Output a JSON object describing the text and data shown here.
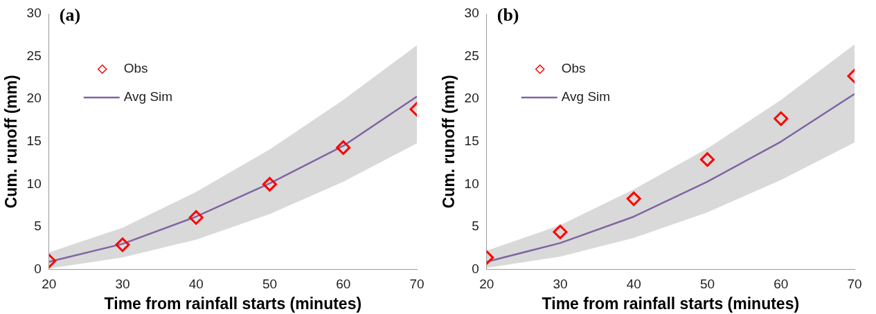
{
  "chart_data": [
    {
      "type": "line",
      "title": "(a)",
      "xlabel": "Time from rainfall starts (minutes)",
      "ylabel": "Cum. runoff (mm)",
      "xlim": [
        20,
        70
      ],
      "xticks": [
        20,
        30,
        40,
        50,
        60,
        70
      ],
      "ylim": [
        0,
        30
      ],
      "yticks": [
        0,
        5,
        10,
        15,
        20,
        25,
        30
      ],
      "grid": false,
      "legend": "top left",
      "series": [
        {
          "name": "Obs",
          "type": "scatter",
          "marker": "diamond",
          "color": "#ff0000",
          "x": [
            20,
            30,
            40,
            50,
            60,
            70
          ],
          "values": [
            1.0,
            2.9,
            6.1,
            10.0,
            14.3,
            18.8
          ]
        },
        {
          "name": "Avg Sim",
          "type": "line",
          "marker": "none",
          "line_style": "solid",
          "color": "#8064a2",
          "x": [
            20,
            30,
            40,
            50,
            60,
            70
          ],
          "values": [
            0.9,
            3.0,
            6.2,
            10.1,
            14.5,
            20.3
          ],
          "lower": [
            0.1,
            1.4,
            3.5,
            6.5,
            10.3,
            14.8
          ],
          "upper": [
            2.0,
            4.9,
            9.1,
            14.1,
            19.9,
            26.3
          ]
        }
      ]
    },
    {
      "type": "line",
      "title": "(b)",
      "xlabel": "Time from rainfall starts (minutes)",
      "ylabel": "Cum. runoff (mm)",
      "xlim": [
        20,
        70
      ],
      "xticks": [
        20,
        30,
        40,
        50,
        60,
        70
      ],
      "ylim": [
        0,
        30
      ],
      "yticks": [
        0,
        5,
        10,
        15,
        20,
        25,
        30
      ],
      "grid": false,
      "legend": "top left",
      "series": [
        {
          "name": "Obs",
          "type": "scatter",
          "marker": "diamond",
          "color": "#ff0000",
          "x": [
            20,
            30,
            40,
            50,
            60,
            70
          ],
          "values": [
            1.4,
            4.4,
            8.3,
            12.9,
            17.7,
            22.7
          ]
        },
        {
          "name": "Avg Sim",
          "type": "line",
          "marker": "none",
          "line_style": "solid",
          "color": "#8064a2",
          "x": [
            20,
            30,
            40,
            50,
            60,
            70
          ],
          "values": [
            0.9,
            3.1,
            6.2,
            10.3,
            15.0,
            20.6
          ],
          "lower": [
            0.2,
            1.5,
            3.7,
            6.7,
            10.5,
            14.9
          ],
          "upper": [
            2.2,
            5.2,
            9.4,
            14.2,
            19.9,
            26.4
          ]
        }
      ]
    }
  ]
}
